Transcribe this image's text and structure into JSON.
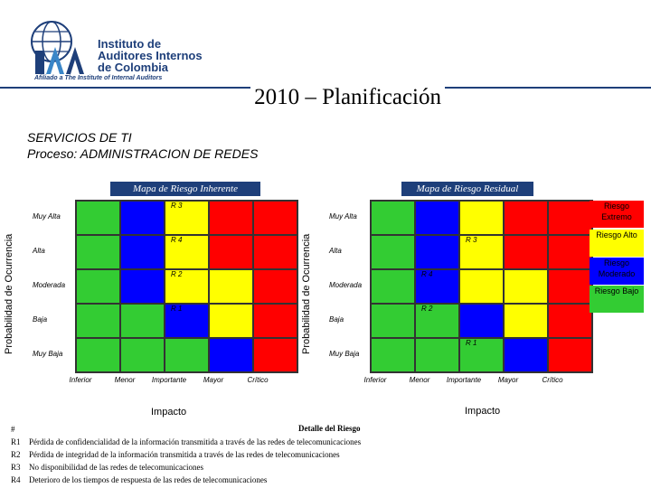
{
  "header": {
    "org_line1": "Instituto de",
    "org_line2": "Auditores Internos",
    "org_line3": "de Colombia",
    "org_affiliation": "Afiliado a The Institute of Internal Auditors",
    "logo_text": "IIA"
  },
  "title": "2010 – Planificación",
  "subtitle": {
    "line1": "SERVICIOS DE TI",
    "line2": "Proceso: ADMINISTRACION DE REDES"
  },
  "colors": {
    "brand": "#1e3f7a",
    "green": "#33cc33",
    "blue": "#0000ff",
    "yellow": "#ffff00",
    "red": "#ff0000"
  },
  "axis": {
    "y_label": "Probabilidad de Ocurrencia",
    "x_label": "Impacto",
    "rows": [
      "Muy Alta",
      "Alta",
      "Moderada",
      "Baja",
      "Muy Baja"
    ],
    "columns": [
      "Inferior",
      "Menor",
      "Importante",
      "Mayor",
      "Crítico"
    ]
  },
  "inherent_map": {
    "title": "Mapa de Riesgo Inherente",
    "grid": [
      [
        "g",
        "b",
        "y",
        "r",
        "r"
      ],
      [
        "g",
        "b",
        "y",
        "r",
        "r"
      ],
      [
        "g",
        "b",
        "y",
        "y",
        "r"
      ],
      [
        "g",
        "g",
        "b",
        "y",
        "r"
      ],
      [
        "g",
        "g",
        "g",
        "b",
        "r"
      ]
    ],
    "risks": [
      {
        "label": "R 3",
        "row": 0,
        "col": 2
      },
      {
        "label": "R 4",
        "row": 1,
        "col": 2
      },
      {
        "label": "R 2",
        "row": 2,
        "col": 2
      },
      {
        "label": "R 1",
        "row": 3,
        "col": 2
      }
    ]
  },
  "residual_map": {
    "title": "Mapa de Riesgo Residual",
    "grid": [
      [
        "g",
        "b",
        "y",
        "r",
        "r"
      ],
      [
        "g",
        "b",
        "y",
        "r",
        "r"
      ],
      [
        "g",
        "b",
        "y",
        "y",
        "r"
      ],
      [
        "g",
        "g",
        "b",
        "y",
        "r"
      ],
      [
        "g",
        "g",
        "g",
        "b",
        "r"
      ]
    ],
    "risks": [
      {
        "label": "R 3",
        "row": 1,
        "col": 2
      },
      {
        "label": "R 4",
        "row": 2,
        "col": 1
      },
      {
        "label": "R 2",
        "row": 3,
        "col": 1
      },
      {
        "label": "R 1",
        "row": 4,
        "col": 2
      }
    ]
  },
  "legend": [
    {
      "label": "Riesgo Extremo",
      "color": "#ff0000"
    },
    {
      "label": "Riesgo Alto",
      "color": "#ffff00"
    },
    {
      "label": "Riesgo Moderado",
      "color": "#0000ff"
    },
    {
      "label": "Riesgo Bajo",
      "color": "#33cc33"
    }
  ],
  "detail": {
    "header_key": "#",
    "header_title": "Detalle del Riesgo",
    "rows": [
      {
        "id": "R1",
        "text": "Pérdida de confidencialidad de la información transmitida a través de las redes de telecomunicaciones"
      },
      {
        "id": "R2",
        "text": "Pérdida de integridad de la información transmitida a través de las redes de telecomunicaciones"
      },
      {
        "id": "R3",
        "text": "No disponibilidad de las redes de telecomunicaciones"
      },
      {
        "id": "R4",
        "text": "Deterioro de los tiempos de respuesta de las redes de telecomunicaciones"
      }
    ]
  }
}
